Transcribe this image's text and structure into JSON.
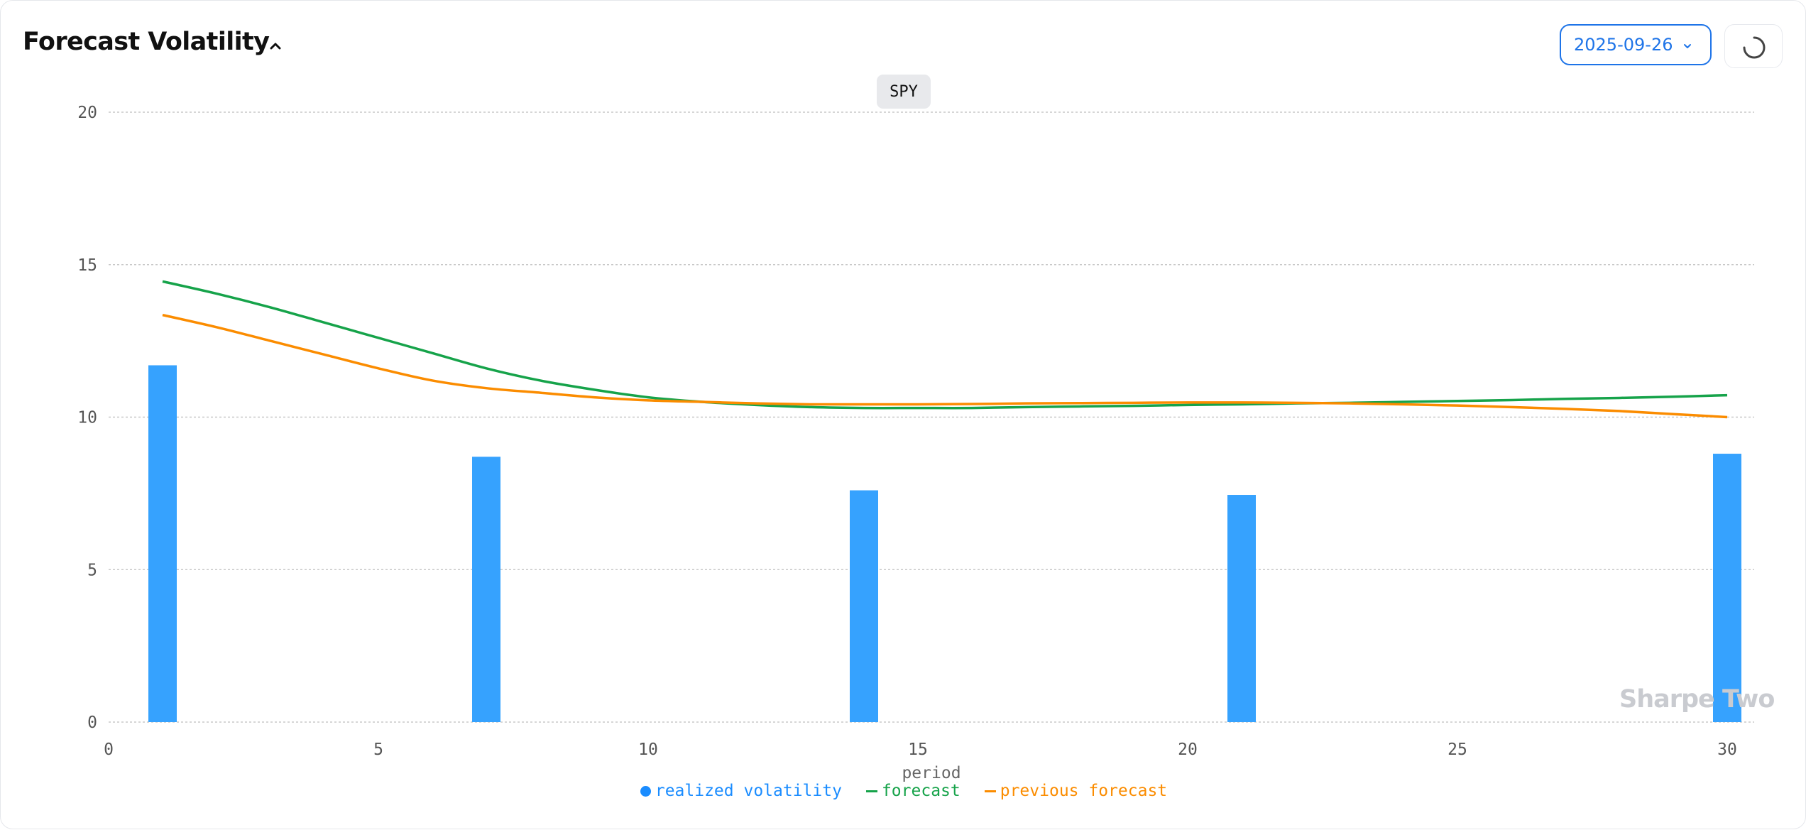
{
  "header": {
    "title": "Forecast Volatility",
    "date_value": "2025-09-26"
  },
  "chart_data": {
    "type": "bar+line",
    "title": "SPY",
    "xlabel": "period",
    "ylabel": "",
    "xlim": [
      0,
      30
    ],
    "ylim": [
      0,
      20
    ],
    "x_ticks": [
      0,
      5,
      10,
      15,
      20,
      25,
      30
    ],
    "y_ticks": [
      0,
      5,
      10,
      15,
      20
    ],
    "grid": true,
    "legend_position": "bottom",
    "watermark": "Sharpe Two",
    "series": [
      {
        "name": "realized volatility",
        "kind": "bar",
        "color": "#36a2fe",
        "x": [
          1,
          7,
          14,
          21,
          30
        ],
        "values": [
          11.7,
          8.7,
          7.6,
          7.45,
          8.8
        ]
      },
      {
        "name": "forecast",
        "kind": "line",
        "color": "#16a34a",
        "x": [
          1,
          2,
          3,
          4,
          5,
          6,
          7,
          8,
          9,
          10,
          11,
          12,
          13,
          14,
          15,
          16,
          17,
          18,
          19,
          20,
          21,
          22,
          23,
          24,
          25,
          26,
          27,
          28,
          29,
          30
        ],
        "values": [
          14.45,
          14.05,
          13.6,
          13.1,
          12.6,
          12.1,
          11.6,
          11.2,
          10.9,
          10.65,
          10.5,
          10.4,
          10.33,
          10.3,
          10.3,
          10.3,
          10.33,
          10.35,
          10.37,
          10.4,
          10.42,
          10.45,
          10.47,
          10.5,
          10.53,
          10.56,
          10.6,
          10.63,
          10.67,
          10.72
        ]
      },
      {
        "name": "previous forecast",
        "kind": "line",
        "color": "#fb8c00",
        "x": [
          1,
          2,
          3,
          4,
          5,
          6,
          7,
          8,
          9,
          10,
          11,
          12,
          13,
          14,
          15,
          16,
          17,
          18,
          19,
          20,
          21,
          22,
          23,
          24,
          25,
          26,
          27,
          28,
          29,
          30
        ],
        "values": [
          13.35,
          12.95,
          12.5,
          12.05,
          11.6,
          11.2,
          10.95,
          10.8,
          10.65,
          10.55,
          10.5,
          10.45,
          10.42,
          10.42,
          10.42,
          10.43,
          10.45,
          10.46,
          10.47,
          10.48,
          10.48,
          10.47,
          10.45,
          10.42,
          10.38,
          10.33,
          10.27,
          10.2,
          10.1,
          10.0
        ]
      }
    ]
  }
}
